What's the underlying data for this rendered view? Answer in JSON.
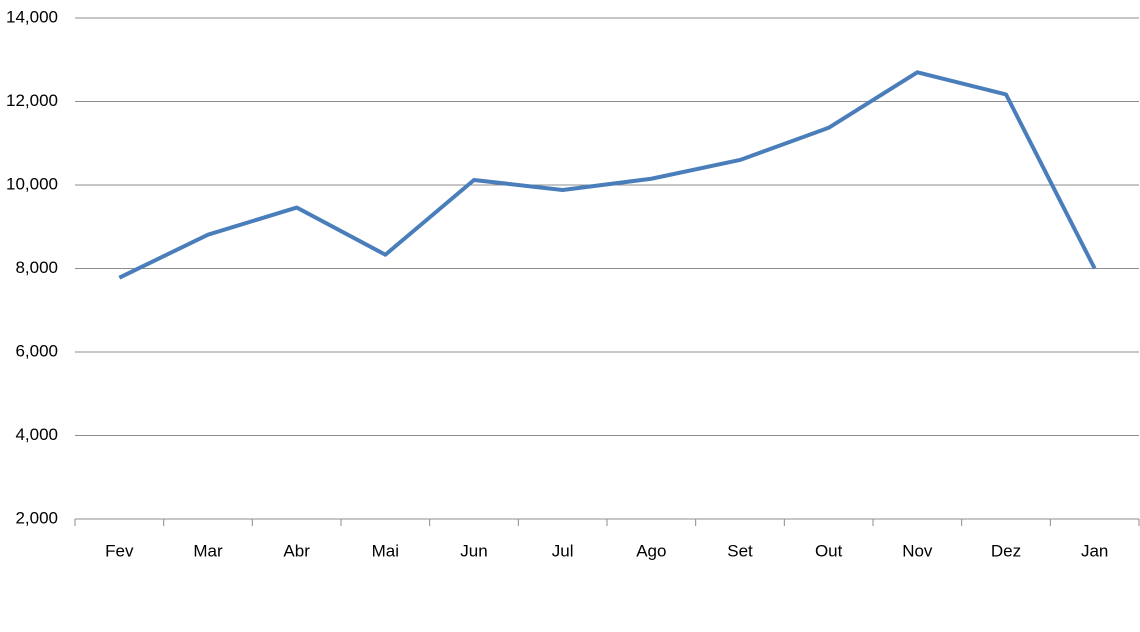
{
  "chart_data": {
    "type": "line",
    "categories": [
      "Fev",
      "Mar",
      "Abr",
      "Mai",
      "Jun",
      "Jul",
      "Ago",
      "Set",
      "Out",
      "Nov",
      "Dez",
      "Jan"
    ],
    "series": [
      {
        "color": "#4a7ebb",
        "values": [
          7780,
          8810,
          9460,
          8330,
          10120,
          9880,
          10150,
          10600,
          11370,
          12700,
          12170,
          8000
        ]
      }
    ],
    "ylim": [
      2000,
      14000
    ],
    "yticks": [
      {
        "value": 2000,
        "label": "2,000"
      },
      {
        "value": 4000,
        "label": "4,000"
      },
      {
        "value": 6000,
        "label": "6,000"
      },
      {
        "value": 8000,
        "label": "8,000"
      },
      {
        "value": 10000,
        "label": "10,000"
      },
      {
        "value": 12000,
        "label": "12,000"
      },
      {
        "value": 14000,
        "label": "14,000"
      }
    ],
    "grid": true
  }
}
